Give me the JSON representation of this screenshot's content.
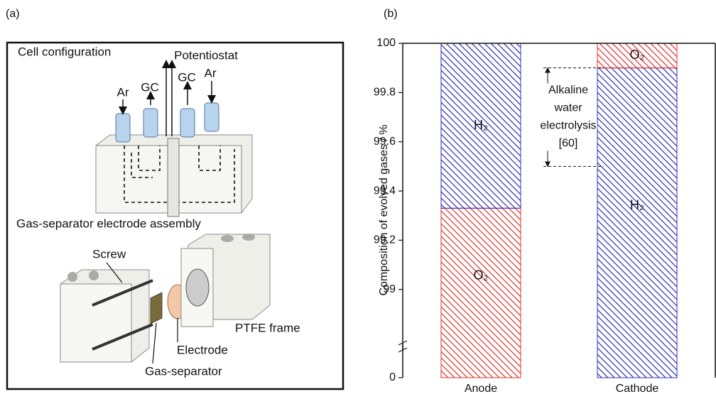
{
  "panel_labels": [
    "(a)",
    "(b)"
  ],
  "diagram": {
    "cell_title": "Cell configuration",
    "potentiostat": "Potentiostat",
    "ports": [
      "Ar",
      "GC",
      "GC",
      "Ar"
    ],
    "assembly_title": "Gas-separator electrode assembly",
    "parts": {
      "screw": "Screw",
      "frame": "PTFE frame",
      "electrode": "Electrode",
      "separator": "Gas-separator"
    }
  },
  "chart_data": {
    "type": "stacked_bar",
    "y_label": "Composition of evolved gases / %",
    "categories": [
      "Anode",
      "Cathode"
    ],
    "segments": [
      [
        {
          "name": "O₂",
          "color": "#e0302a",
          "value": 99.33
        },
        {
          "name": "H₂",
          "color": "#2f2fb8",
          "value": 0.67
        }
      ],
      [
        {
          "name": "H₂",
          "color": "#2f2fb8",
          "value": 99.9
        },
        {
          "name": "O₂",
          "color": "#e0302a",
          "value": 0.1
        }
      ]
    ],
    "ylim": [
      0,
      100
    ],
    "ybreak": [
      0,
      98.78
    ],
    "yticks": [
      0,
      99,
      99.2,
      99.4,
      99.6,
      99.8,
      100
    ],
    "annotation": {
      "lines": [
        "Alkaline",
        "water",
        "electrolysis",
        "[60]"
      ],
      "range": [
        99.5,
        99.9
      ]
    }
  }
}
